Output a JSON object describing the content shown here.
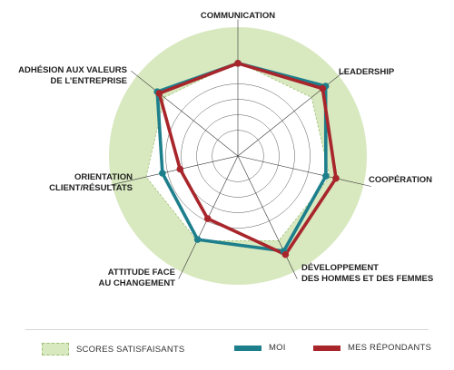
{
  "chart_data": {
    "type": "radar",
    "axes": [
      [
        "COMMUNICATION"
      ],
      [
        "LEADERSHIP"
      ],
      [
        "COOPÉRATION"
      ],
      [
        "DÉVELOPPEMENT",
        "DES HOMMES ET DES FEMMES"
      ],
      [
        "ATTITUDE FACE",
        "AU CHANGEMENT"
      ],
      [
        "ORIENTATION",
        "CLIENT/RÉSULTATS"
      ],
      [
        "ADHÉSION AUX VALEURS",
        "DE L’ENTREPRISE"
      ]
    ],
    "range": [
      0,
      10
    ],
    "satisfactory_zone": {
      "label": "SCORES SATISFAISANTS",
      "from": 7.3,
      "to": 10,
      "color": "#d8e8bf"
    },
    "series": [
      {
        "name": "MOI",
        "color": "#1d7f8c",
        "values": [
          7.2,
          8.7,
          7.0,
          8.2,
          7.2,
          6.0,
          8.0
        ]
      },
      {
        "name": "MES RÉPONDANTS",
        "color": "#a8262b",
        "values": [
          7.2,
          8.4,
          7.8,
          8.5,
          5.4,
          4.6,
          7.8
        ]
      }
    ]
  }
}
